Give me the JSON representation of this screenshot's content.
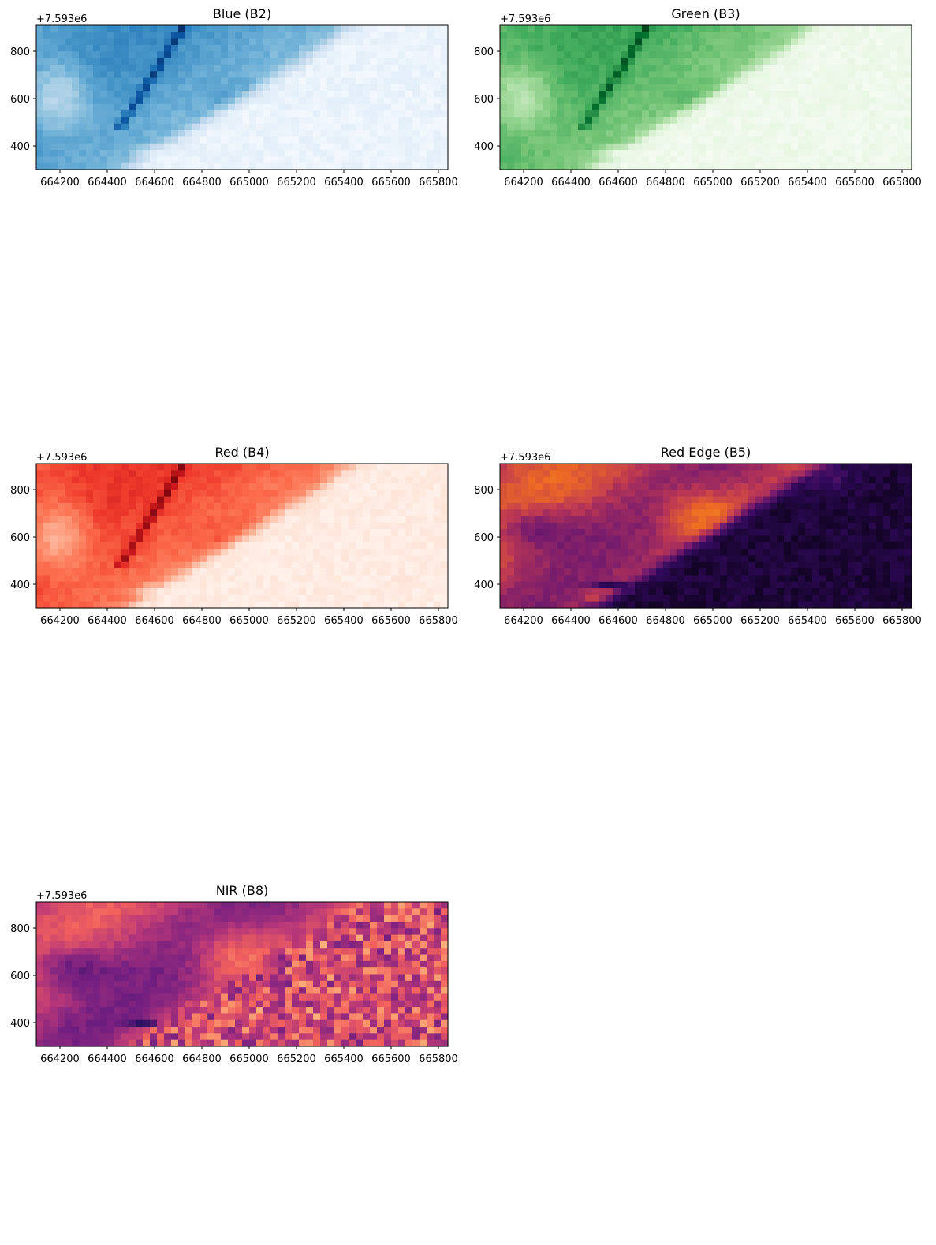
{
  "chart_data": [
    {
      "type": "heatmap",
      "title": "Blue (B2)",
      "colormap": "Blues",
      "colors": [
        "#f7fbff",
        "#deebf7",
        "#c6dbef",
        "#9ecae1",
        "#6baed6",
        "#4292c6",
        "#2171b5",
        "#08519c",
        "#08306b"
      ],
      "xlim": [
        664100,
        665840
      ],
      "ylim": [
        300,
        910
      ],
      "offset_text": "+7.593e6",
      "xticks": [
        "664200",
        "664400",
        "664600",
        "664800",
        "665000",
        "665200",
        "665400",
        "665600",
        "665800"
      ],
      "yticks": [
        "400",
        "600",
        "800"
      ]
    },
    {
      "type": "heatmap",
      "title": "Green (B3)",
      "colormap": "Greens",
      "colors": [
        "#f7fcf5",
        "#e5f5e0",
        "#c7e9c0",
        "#a1d99b",
        "#74c476",
        "#41ab5d",
        "#238b45",
        "#006d2c",
        "#00441b"
      ],
      "xlim": [
        664100,
        665840
      ],
      "ylim": [
        300,
        910
      ],
      "offset_text": "+7.593e6",
      "xticks": [
        "664200",
        "664400",
        "664600",
        "664800",
        "665000",
        "665200",
        "665400",
        "665600",
        "665800"
      ],
      "yticks": [
        "400",
        "600",
        "800"
      ]
    },
    {
      "type": "heatmap",
      "title": "Red (B4)",
      "colormap": "Reds",
      "colors": [
        "#fff5f0",
        "#fee0d2",
        "#fcbba1",
        "#fc9272",
        "#fb6a4a",
        "#ef3b2c",
        "#cb181d",
        "#a50f15",
        "#67000d"
      ],
      "xlim": [
        664100,
        665840
      ],
      "ylim": [
        300,
        910
      ],
      "offset_text": "+7.593e6",
      "xticks": [
        "664200",
        "664400",
        "664600",
        "664800",
        "665000",
        "665200",
        "665400",
        "665600",
        "665800"
      ],
      "yticks": [
        "400",
        "600",
        "800"
      ]
    },
    {
      "type": "heatmap",
      "title": "Red Edge (B5)",
      "colormap": "inferno",
      "colors": [
        "#000004",
        "#320a5e",
        "#781c6d",
        "#bc3754",
        "#ed6925",
        "#fbb61a",
        "#fcffa4"
      ],
      "xlim": [
        664100,
        665840
      ],
      "ylim": [
        300,
        910
      ],
      "offset_text": "+7.593e6",
      "xticks": [
        "664200",
        "664400",
        "664600",
        "664800",
        "665000",
        "665200",
        "665400",
        "665600",
        "665800"
      ],
      "yticks": [
        "400",
        "600",
        "800"
      ]
    },
    {
      "type": "heatmap",
      "title": "NIR (B8)",
      "colormap": "magma",
      "colors": [
        "#000004",
        "#2c115f",
        "#721f81",
        "#b73779",
        "#f1605d",
        "#feb078",
        "#fcfdbf"
      ],
      "xlim": [
        664100,
        665840
      ],
      "ylim": [
        300,
        910
      ],
      "offset_text": "+7.593e6",
      "xticks": [
        "664200",
        "664400",
        "664600",
        "664800",
        "665000",
        "665200",
        "665400",
        "665600",
        "665800"
      ],
      "yticks": [
        "400",
        "600",
        "800"
      ]
    }
  ]
}
